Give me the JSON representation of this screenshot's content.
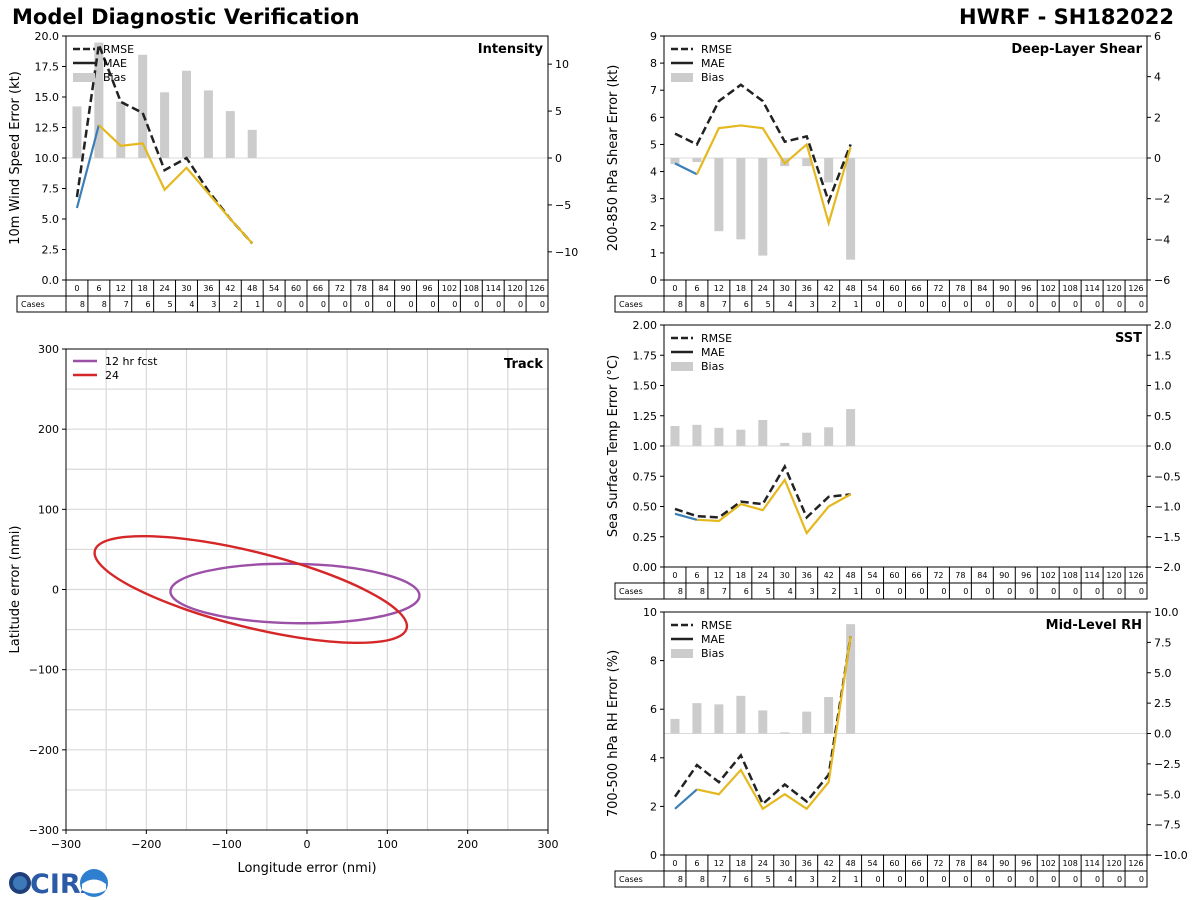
{
  "header": {
    "title": "Model Diagnostic Verification",
    "model_id": "HWRF - SH182022"
  },
  "logo": {
    "text": "CIRA"
  },
  "colors": {
    "rmse": "#222222",
    "mae_early": "#3b7fb6",
    "mae": "#e5b81f",
    "bias": "#cccccc",
    "track12": "#9b4fa6",
    "track24": "#d62728",
    "grid": "#d9d9d9",
    "zero": "#d9d9d9"
  },
  "legend": {
    "rmse": "RMSE",
    "mae": "MAE",
    "bias": "Bias"
  },
  "cases_label": "Cases",
  "forecast_hours": [
    0,
    6,
    12,
    18,
    24,
    30,
    36,
    42,
    48,
    54,
    60,
    66,
    72,
    78,
    84,
    90,
    96,
    102,
    108,
    114,
    120,
    126
  ],
  "cases": [
    8,
    8,
    7,
    6,
    5,
    4,
    3,
    2,
    1,
    0,
    0,
    0,
    0,
    0,
    0,
    0,
    0,
    0,
    0,
    0,
    0,
    0
  ],
  "chart_data": [
    {
      "id": "intensity",
      "type": "line",
      "title": "Intensity",
      "ylabel": "10m Wind Speed Error (kt)",
      "ylim": [
        0,
        20
      ],
      "yticks": [
        0,
        2.5,
        5,
        7.5,
        10,
        12.5,
        15,
        17.5,
        20
      ],
      "y_decimals": 1,
      "y2lim": [
        -13,
        13
      ],
      "y2ticks": [
        -10,
        -5,
        0,
        5,
        10
      ],
      "y2_decimals": 0,
      "x": [
        0,
        6,
        12,
        18,
        24,
        30,
        36,
        42,
        48
      ],
      "rmse": [
        6.8,
        19.3,
        14.6,
        13.7,
        9.0,
        10.0,
        7.3,
        5.0,
        3.0
      ],
      "mae": [
        5.9,
        12.7,
        11.0,
        11.2,
        7.4,
        9.2,
        7.1,
        5.0,
        3.0
      ],
      "bias": [
        5.5,
        12.3,
        6.0,
        11.0,
        7.0,
        9.3,
        7.2,
        5.0,
        3.0
      ]
    },
    {
      "id": "shear",
      "type": "line",
      "title": "Deep-Layer Shear",
      "ylabel": "200-850 hPa Shear Error (kt)",
      "ylim": [
        0,
        9
      ],
      "yticks": [
        0,
        1,
        2,
        3,
        4,
        5,
        6,
        7,
        8,
        9
      ],
      "y_decimals": 0,
      "y2lim": [
        -6,
        6
      ],
      "y2ticks": [
        -6,
        -4,
        -2,
        0,
        2,
        4,
        6
      ],
      "y2_decimals": 0,
      "x": [
        0,
        6,
        12,
        18,
        24,
        30,
        36,
        42,
        48
      ],
      "rmse": [
        5.4,
        5.0,
        6.6,
        7.2,
        6.6,
        5.1,
        5.3,
        2.9,
        5.0
      ],
      "mae": [
        4.3,
        3.9,
        5.6,
        5.7,
        5.6,
        4.3,
        5.0,
        2.1,
        4.9
      ],
      "bias": [
        -0.3,
        -0.2,
        -3.6,
        -4.0,
        -4.8,
        -0.4,
        -0.4,
        -1.2,
        -5.0
      ]
    },
    {
      "id": "sst",
      "type": "line",
      "title": "SST",
      "ylabel": "Sea Surface Temp Error (°C)",
      "ylim": [
        0,
        2
      ],
      "yticks": [
        0,
        0.25,
        0.5,
        0.75,
        1,
        1.25,
        1.5,
        1.75,
        2
      ],
      "y_decimals": 2,
      "y2lim": [
        -2,
        2
      ],
      "y2ticks": [
        -2,
        -1.5,
        -1,
        -0.5,
        0,
        0.5,
        1,
        1.5,
        2
      ],
      "y2_decimals": 1,
      "x": [
        0,
        6,
        12,
        18,
        24,
        30,
        36,
        42,
        48
      ],
      "rmse": [
        0.48,
        0.42,
        0.41,
        0.54,
        0.52,
        0.83,
        0.41,
        0.58,
        0.6
      ],
      "mae": [
        0.44,
        0.39,
        0.38,
        0.52,
        0.47,
        0.72,
        0.28,
        0.5,
        0.6
      ],
      "bias": [
        0.33,
        0.35,
        0.3,
        0.27,
        0.43,
        0.05,
        0.22,
        0.31,
        0.61
      ]
    },
    {
      "id": "rh",
      "type": "line",
      "title": "Mid-Level RH",
      "ylabel": "700-500 hPa RH Error (%)",
      "ylim": [
        0,
        10
      ],
      "yticks": [
        0,
        2,
        4,
        6,
        8,
        10
      ],
      "y_decimals": 0,
      "y2lim": [
        -10,
        10
      ],
      "y2ticks": [
        -10,
        -7.5,
        -5,
        -2.5,
        0,
        2.5,
        5,
        7.5,
        10
      ],
      "y2_decimals": 1,
      "x": [
        0,
        6,
        12,
        18,
        24,
        30,
        36,
        42,
        48
      ],
      "rmse": [
        2.4,
        3.7,
        3.0,
        4.1,
        2.1,
        2.9,
        2.2,
        3.3,
        9.0
      ],
      "mae": [
        1.9,
        2.7,
        2.5,
        3.5,
        1.9,
        2.5,
        1.9,
        3.0,
        9.0
      ],
      "bias": [
        1.2,
        2.5,
        2.4,
        3.1,
        1.9,
        0.1,
        1.8,
        3.0,
        9.0
      ]
    },
    {
      "id": "track",
      "type": "scatter",
      "title": "Track",
      "xlabel": "Longitude error (nmi)",
      "ylabel": "Latitude error (nmi)",
      "xlim": [
        -300,
        300
      ],
      "ylim": [
        -300,
        300
      ],
      "xticks": [
        -300,
        -200,
        -100,
        0,
        100,
        200,
        300
      ],
      "yticks": [
        -300,
        -200,
        -100,
        0,
        100,
        200,
        300
      ],
      "gridlines": [
        -250,
        -200,
        -150,
        -100,
        -50,
        0,
        50,
        100,
        150,
        200,
        250
      ],
      "series": [
        {
          "name": "12 hr fcst",
          "center": [
            -15,
            -5
          ],
          "semi_axes": [
            155,
            37
          ],
          "rotation_deg": -1
        },
        {
          "name": "24",
          "center": [
            -70,
            0
          ],
          "semi_axes": [
            200,
            47
          ],
          "rotation_deg": -14
        }
      ]
    }
  ]
}
